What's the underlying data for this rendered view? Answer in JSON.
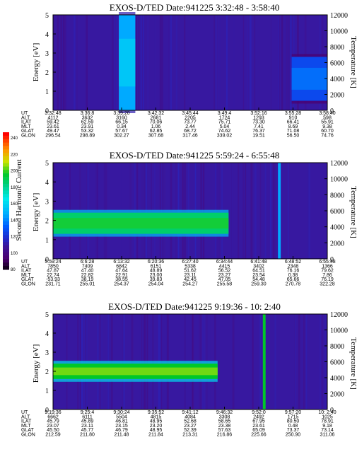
{
  "chart_data": [
    {
      "type": "heatmap",
      "title": "EXOS-D/TED   Date:941225   3:32:48 - 3:58:40",
      "ylabel": "Energy [eV]",
      "y2label": "Temperature [K]",
      "ylim": [
        0,
        5
      ],
      "y2lim": [
        0,
        12000
      ],
      "yticks": [
        "0",
        "1",
        "2",
        "3",
        "4",
        "5"
      ],
      "y2ticks": [
        "0",
        "2000",
        "4000",
        "6000",
        "8000",
        "10000",
        "12000"
      ],
      "ephemeris_rows": [
        "UT",
        "ALT",
        "ILAT",
        "MLT",
        "GLAT",
        "GLON"
      ],
      "ephemeris": [
        [
          "3:32:48",
          "4112",
          "59.42",
          "23.61",
          "49.47",
          "296.54"
        ],
        [
          "3:36:8",
          "3632",
          "62.59",
          "23.91",
          "53.32",
          "298.89"
        ],
        [
          "3:39:20",
          "3160",
          "66.15",
          "0.34",
          "57.67",
          "302.27"
        ],
        [
          "3:42:32",
          "2681",
          "70.06",
          "1.06",
          "62.85",
          "307.68"
        ],
        [
          "3:45:44",
          "2205",
          "73.77",
          "2.44",
          "68.72",
          "317.46"
        ],
        [
          "3:49:4",
          "1724",
          "75.71",
          "5.04",
          "74.62",
          "339.02"
        ],
        [
          "3:52:16",
          "1293",
          "73.30",
          "7.41",
          "76.37",
          "19.51"
        ],
        [
          "3:55:28",
          "910",
          "66.41",
          "8.69",
          "71.08",
          "56.50"
        ],
        [
          "3:58:40",
          "598",
          "55.91",
          "9.38",
          "60.70",
          "74.76"
        ]
      ],
      "features": [
        {
          "kind": "band",
          "x_frac": [
            0.24,
            0.3
          ],
          "e_range": [
            0,
            5
          ],
          "level": 150
        },
        {
          "kind": "band",
          "x_frac": [
            0.87,
            1.0
          ],
          "e_range": [
            0.5,
            2.8
          ],
          "level": 130
        }
      ]
    },
    {
      "type": "heatmap",
      "title": "EXOS-D/TED   Date:941225   5:59:24 - 6:55:48",
      "ylabel": "Energy [eV]",
      "y2label": "Temperature [K]",
      "ylim": [
        0,
        5
      ],
      "y2lim": [
        0,
        12000
      ],
      "yticks": [
        "0",
        "1",
        "2",
        "3",
        "4",
        "5"
      ],
      "y2ticks": [
        "0",
        "2000",
        "4000",
        "6000",
        "8000",
        "10000",
        "12000"
      ],
      "ephemeris_rows": [
        "UT",
        "ALT",
        "ILAT",
        "MLT",
        "GLAT",
        "GLON"
      ],
      "ephemeris": [
        [
          "5:59:24",
          "7850",
          "47.87",
          "22.74",
          "-53.93",
          "231.71"
        ],
        [
          "6:6:28",
          "7409",
          "47.40",
          "22.82",
          "38.19",
          "255.01"
        ],
        [
          "6:13:32",
          "6842",
          "47.64",
          "22.91",
          "38.55",
          "254.37"
        ],
        [
          "6:20:36",
          "6151",
          "48.89",
          "23.00",
          "39.83",
          "254.04"
        ],
        [
          "6:27:40",
          "5338",
          "51.62",
          "23.11",
          "42.45",
          "254.27"
        ],
        [
          "6:34:44",
          "4415",
          "56.52",
          "23.27",
          "47.05",
          "255.58"
        ],
        [
          "6:41:48",
          "3402",
          "64.51",
          "23.54",
          "54.48",
          "259.30"
        ],
        [
          "6:48:52",
          "2348",
          "76.16",
          "0.38",
          "65.66",
          "270.78"
        ],
        [
          "6:55:48",
          "1366",
          "79.62",
          "7.86",
          "76.19",
          "322.28"
        ]
      ],
      "features": [
        {
          "kind": "band",
          "x_frac": [
            0.0,
            0.64
          ],
          "e_range": [
            1.3,
            2.4
          ],
          "level": 190
        },
        {
          "kind": "line",
          "x_frac": [
            0.82,
            0.83
          ],
          "e_range": [
            0,
            5
          ],
          "level": 150
        }
      ]
    },
    {
      "type": "heatmap",
      "title": "EXOS-D/TED   Date:941225   9:19:36 - 10: 2:40",
      "ylabel": "Energy [eV]",
      "y2label": "Temperature [K]",
      "ylim": [
        0,
        5
      ],
      "y2lim": [
        0,
        12000
      ],
      "yticks": [
        "0",
        "1",
        "2",
        "3",
        "4",
        "5"
      ],
      "y2ticks": [
        "0",
        "2000",
        "4000",
        "6000",
        "8000",
        "10000",
        "12000"
      ],
      "ephemeris_rows": [
        "UT",
        "ALT",
        "ILAT",
        "MLT",
        "GLAT",
        "GLON"
      ],
      "ephemeris": [
        [
          "9:19:36",
          "6662",
          "45.79",
          "23.07",
          "45.50",
          "212.59"
        ],
        [
          "9:25:4",
          "6111",
          "45.89",
          "23.11",
          "45.77",
          "211.80"
        ],
        [
          "9:30:24",
          "5504",
          "46.81",
          "23.15",
          "46.79",
          "211.48"
        ],
        [
          "9:35:52",
          "4815",
          "48.95",
          "23.20",
          "48.95",
          "211.84"
        ],
        [
          "9:41:12",
          "4084",
          "52.68",
          "23.27",
          "52.39",
          "213.31"
        ],
        [
          "9:46:32",
          "3308",
          "58.65",
          "23.38",
          "57.63",
          "216.86"
        ],
        [
          "9:52:0",
          "2492",
          "67.95",
          "23.61",
          "65.09",
          "225.66"
        ],
        [
          "9:57:20",
          "1715",
          "80.50",
          "0.48",
          "73.37",
          "250.90"
        ],
        [
          "10: 2:40",
          "1025",
          "78.91",
          "9.18",
          "73.14",
          "311.06"
        ]
      ],
      "features": [
        {
          "kind": "band",
          "x_frac": [
            0.0,
            0.6
          ],
          "e_range": [
            1.6,
            2.4
          ],
          "level": 200
        },
        {
          "kind": "line",
          "x_frac": [
            0.765,
            0.775
          ],
          "e_range": [
            0,
            5
          ],
          "level": 200
        }
      ]
    }
  ],
  "colorbar": {
    "label": "Second Harmonic Current",
    "ticks": [
      "240",
      "220",
      "200",
      "180",
      "160",
      "140",
      "120",
      "100",
      "80"
    ],
    "range": [
      80,
      250
    ]
  }
}
